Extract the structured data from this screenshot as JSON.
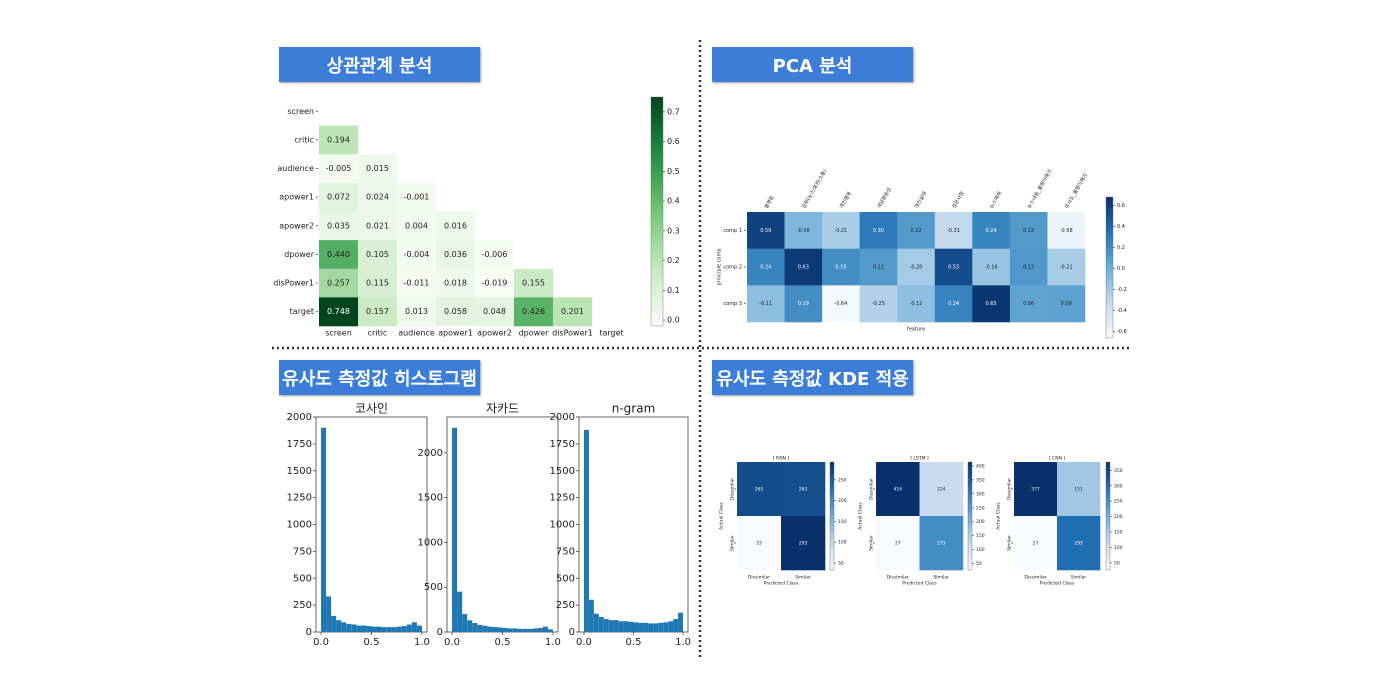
{
  "headers": [
    "상관관계 분석",
    "PCA 분석",
    "유사도 측정값 히스토그램",
    "유사도 측정값 KDE 적용"
  ],
  "chart_data": [
    {
      "type": "heatmap",
      "colormap": "Greens",
      "categories": [
        "screen",
        "critic",
        "audience",
        "apower1",
        "apower2",
        "dpower",
        "disPower1",
        "target"
      ],
      "rows": [
        "screen",
        "critic",
        "audience",
        "apower1",
        "apower2",
        "dpower",
        "disPower1",
        "target"
      ],
      "values": [
        [
          null,
          null,
          null,
          null,
          null,
          null,
          null,
          null
        ],
        [
          0.194,
          null,
          null,
          null,
          null,
          null,
          null,
          null
        ],
        [
          -0.005,
          0.015,
          null,
          null,
          null,
          null,
          null,
          null
        ],
        [
          0.072,
          0.024,
          -0.001,
          null,
          null,
          null,
          null,
          null
        ],
        [
          0.035,
          0.021,
          0.004,
          0.016,
          null,
          null,
          null,
          null
        ],
        [
          0.44,
          0.105,
          -0.004,
          0.036,
          -0.006,
          null,
          null,
          null
        ],
        [
          0.257,
          0.115,
          -0.011,
          0.018,
          -0.019,
          0.155,
          null,
          null
        ],
        [
          0.748,
          0.157,
          0.013,
          0.058,
          0.048,
          0.426,
          0.201,
          null
        ]
      ],
      "value_labels": [
        [
          null,
          null,
          null,
          null,
          null,
          null,
          null,
          null
        ],
        [
          "0.194",
          null,
          null,
          null,
          null,
          null,
          null,
          null
        ],
        [
          "-0.005",
          "0.015",
          null,
          null,
          null,
          null,
          null,
          null
        ],
        [
          "0.072",
          "0.024",
          "-0.001",
          null,
          null,
          null,
          null,
          null
        ],
        [
          "0.035",
          "0.021",
          "0.004",
          "0.016",
          null,
          null,
          null,
          null
        ],
        [
          "0.440",
          "0.105",
          "-0.004",
          "0.036",
          "-0.006",
          null,
          null,
          null
        ],
        [
          "0.257",
          "0.115",
          "-0.011",
          "0.018",
          "-0.019",
          "0.155",
          null,
          null
        ],
        [
          "0.748",
          "0.157",
          "0.013",
          "0.058",
          "0.048",
          "0.426",
          "0.201",
          null
        ]
      ],
      "clim": [
        -0.02,
        0.75
      ],
      "cticks": [
        {
          "value": 0,
          "label": "0.0"
        },
        0.1,
        0.2,
        0.3,
        0.4,
        0.5,
        0.6,
        0.7
      ]
    },
    {
      "type": "heatmap",
      "colormap": "Blues",
      "x_label": "feature",
      "y_label": "principle comp",
      "categories": [
        "불평등",
        "집회(뉴스/표현/소통)",
        "개인행복",
        "개념평등성",
        "개인실태",
        "정돈사항",
        "뉴스매체",
        "뉴스내용_불평이해가",
        "유사도_불평이해가"
      ],
      "rows": [
        "comp 1",
        "comp 2",
        "comp 3"
      ],
      "values": [
        [
          0.59,
          -0.06,
          -0.21,
          0.3,
          0.12,
          -0.31,
          0.24,
          0.12,
          -0.58
        ],
        [
          0.24,
          0.63,
          0.19,
          0.12,
          -0.2,
          0.53,
          -0.16,
          0.13,
          -0.21
        ],
        [
          -0.11,
          0.19,
          -0.64,
          -0.25,
          -0.12,
          0.24,
          0.65,
          0.06,
          0.08
        ]
      ],
      "value_labels": [
        [
          "0.59",
          "-0.06",
          "-0.21",
          "0.30",
          "0.12",
          "-0.31",
          "0.24",
          "0.12",
          "-0.58"
        ],
        [
          "0.24",
          "0.63",
          "0.19",
          "0.12",
          "-0.20",
          "0.53",
          "-0.16",
          "0.13",
          "-0.21"
        ],
        [
          "-0.11",
          "0.19",
          "-0.64",
          "-0.25",
          "-0.12",
          "0.24",
          "0.65",
          "0.06",
          "0.08"
        ]
      ],
      "clim": [
        -0.66,
        0.68
      ],
      "cticks": [
        0.6,
        0.4,
        0.2,
        {
          "value": 0,
          "label": "0.0"
        },
        -0.2,
        -0.4,
        -0.6
      ]
    },
    {
      "type": "histogram",
      "title": "코사인",
      "color": "#1f77b4",
      "bins": [
        0,
        0.05,
        0.1,
        0.15,
        0.2,
        0.25,
        0.3,
        0.35,
        0.4,
        0.45,
        0.5,
        0.55,
        0.6,
        0.65,
        0.7,
        0.75,
        0.8,
        0.85,
        0.9,
        0.95,
        1
      ],
      "values": [
        1900,
        330,
        150,
        110,
        90,
        75,
        70,
        60,
        60,
        55,
        50,
        50,
        45,
        45,
        45,
        50,
        55,
        70,
        90,
        60
      ],
      "xlim": [
        -0.05,
        1.05
      ],
      "xticks": [
        {
          "value": 0,
          "label": "0.0"
        },
        0.5,
        {
          "value": 1,
          "label": "1.0"
        }
      ],
      "ylim": [
        0,
        2000
      ],
      "yticks": [
        0,
        250,
        500,
        750,
        1000,
        1250,
        1500,
        1750,
        2000
      ]
    },
    {
      "type": "histogram",
      "title": "자카드",
      "color": "#1f77b4",
      "bins": [
        0,
        0.05,
        0.1,
        0.15,
        0.2,
        0.25,
        0.3,
        0.35,
        0.4,
        0.45,
        0.5,
        0.55,
        0.6,
        0.65,
        0.7,
        0.75,
        0.8,
        0.85,
        0.9,
        0.95,
        1
      ],
      "values": [
        2280,
        450,
        200,
        130,
        100,
        80,
        70,
        60,
        55,
        50,
        45,
        40,
        40,
        35,
        35,
        35,
        40,
        45,
        60,
        30
      ],
      "xlim": [
        -0.05,
        1.05
      ],
      "xticks": [
        {
          "value": 0,
          "label": "0.0"
        },
        0.5,
        {
          "value": 1,
          "label": "1.0"
        }
      ],
      "ylim": [
        0,
        2400
      ],
      "yticks": [
        0,
        500,
        1000,
        1500,
        2000
      ]
    },
    {
      "type": "histogram",
      "title": "n-gram",
      "color": "#1f77b4",
      "bins": [
        0,
        0.05,
        0.1,
        0.15,
        0.2,
        0.25,
        0.3,
        0.35,
        0.4,
        0.45,
        0.5,
        0.55,
        0.6,
        0.65,
        0.7,
        0.75,
        0.8,
        0.85,
        0.9,
        0.95,
        1
      ],
      "values": [
        1880,
        300,
        170,
        140,
        120,
        110,
        110,
        100,
        100,
        95,
        90,
        85,
        85,
        80,
        80,
        85,
        90,
        100,
        120,
        180
      ],
      "xlim": [
        -0.05,
        1.05
      ],
      "xticks": [
        {
          "value": 0,
          "label": "0.0"
        },
        0.5,
        {
          "value": 1,
          "label": "1.0"
        }
      ],
      "ylim": [
        0,
        2000
      ],
      "yticks": [
        0,
        250,
        500,
        750,
        1000,
        1250,
        1500,
        1750,
        2000
      ]
    },
    {
      "type": "heatmap",
      "colormap": "Blues",
      "title": "[ RNN ]",
      "x_label": "Predicted Class",
      "y_label": "Actual Class",
      "categories": [
        "Dissimilar",
        "Similar"
      ],
      "rows": [
        "Dissimilar",
        "Similar"
      ],
      "values": [
        [
          265,
          263
        ],
        [
          33,
          293
        ]
      ],
      "clim": [
        33,
        293
      ],
      "cticks": [
        50,
        100,
        150,
        200,
        250
      ]
    },
    {
      "type": "heatmap",
      "colormap": "Blues",
      "title": "[ LSTM ]",
      "x_label": "Predicted Class",
      "y_label": "Actual Class",
      "categories": [
        "Dissimilar",
        "Similar"
      ],
      "rows": [
        "Dissimilar",
        "Similar"
      ],
      "values": [
        [
          414,
          124
        ],
        [
          27,
          273
        ]
      ],
      "clim": [
        27,
        414
      ],
      "cticks": [
        50,
        100,
        150,
        200,
        250,
        300,
        350,
        400
      ]
    },
    {
      "type": "heatmap",
      "colormap": "Blues",
      "title": "[ CNN ]",
      "x_label": "Predicted Class",
      "y_label": "Actual Class",
      "categories": [
        "Dissimilar",
        "Similar"
      ],
      "rows": [
        "Dissimilar",
        "Similar"
      ],
      "values": [
        [
          377,
          151
        ],
        [
          27,
          293
        ]
      ],
      "clim": [
        27,
        377
      ],
      "cticks": [
        50,
        100,
        150,
        200,
        250,
        300,
        350
      ]
    }
  ]
}
